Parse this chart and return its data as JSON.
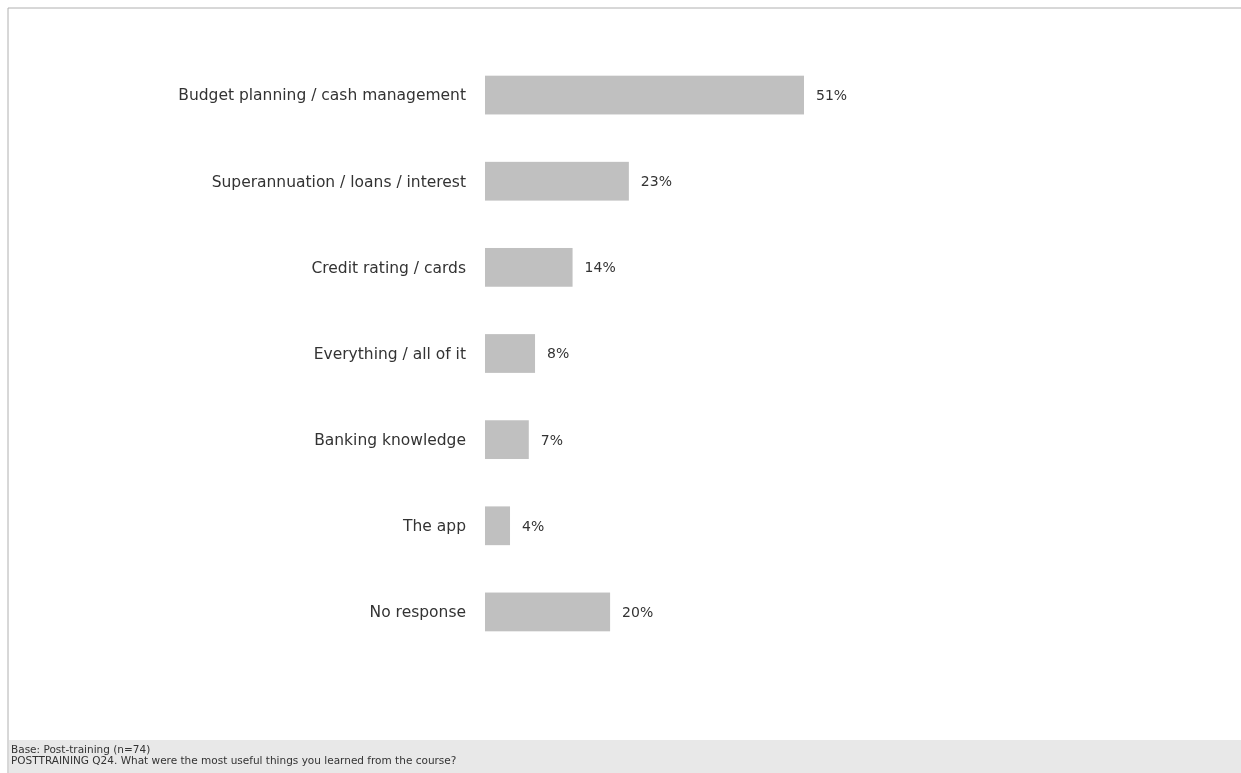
{
  "chart_data": {
    "type": "bar",
    "orientation": "horizontal",
    "categories": [
      "Budget planning / cash management",
      "Superannuation / loans / interest",
      "Credit rating / cards",
      "Everything / all of it",
      "Banking knowledge",
      "The app",
      "No response"
    ],
    "values": [
      51,
      23,
      14,
      8,
      7,
      4,
      20
    ],
    "value_labels": [
      "51%",
      "23%",
      "14%",
      "8%",
      "7%",
      "4%",
      "20%"
    ],
    "color": "#c0c0c0",
    "annotations": [
      "Base: Post-training (n=74)",
      "POSTTRAINING Q24. What were the most useful things you learned from the course?"
    ]
  }
}
